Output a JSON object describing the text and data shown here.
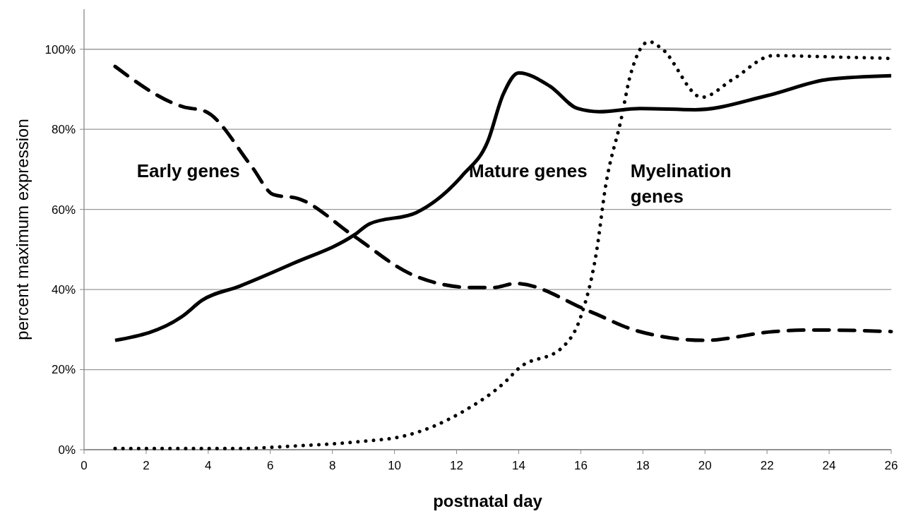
{
  "chart_data": {
    "type": "line",
    "xlabel": "postnatal day",
    "ylabel": "percent maximum expression",
    "xlim": [
      0,
      26
    ],
    "xticks": [
      0,
      2,
      4,
      6,
      8,
      10,
      12,
      14,
      16,
      18,
      20,
      22,
      24,
      26
    ],
    "ylim": [
      0,
      110
    ],
    "yticks": [
      {
        "value": 0,
        "label": "0%"
      },
      {
        "value": 20,
        "label": "20%"
      },
      {
        "value": 40,
        "label": "40%"
      },
      {
        "value": 60,
        "label": "60%"
      },
      {
        "value": 80,
        "label": "80%"
      },
      {
        "value": 100,
        "label": "100%"
      }
    ],
    "grid": "y",
    "legend": false,
    "marker": "none",
    "series": [
      {
        "name": "Early genes",
        "color": "#000000",
        "line_style": "dashed",
        "x": [
          1,
          3.2,
          3.9,
          5.4,
          6.1,
          6.9,
          8.7,
          10.6,
          12.5,
          13.2,
          13.9,
          16.3,
          17.8,
          20,
          22.2,
          23.6,
          26
        ],
        "values": [
          95.7,
          85.6,
          84.5,
          70.7,
          63.7,
          62.7,
          53.3,
          43.6,
          40.5,
          40.5,
          41.5,
          34.5,
          29.7,
          27.3,
          29.5,
          29.9,
          29.5
        ]
      },
      {
        "name": "Mature genes",
        "color": "#000000",
        "line_style": "solid",
        "x": [
          1,
          3.2,
          3.8,
          5,
          6.7,
          8.7,
          9.2,
          10.7,
          12.2,
          13,
          13.5,
          14,
          15,
          15.9,
          16.6,
          17.9,
          19.7,
          22,
          24,
          26
        ],
        "values": [
          27.3,
          33.5,
          37.3,
          40.8,
          46.4,
          53.6,
          56.4,
          59.2,
          68.6,
          76.9,
          88.7,
          94.1,
          90.8,
          85.2,
          84.4,
          85.2,
          84.9,
          88.4,
          92.5,
          93.4
        ]
      },
      {
        "name": "Myelination genes",
        "color": "#000000",
        "line_style": "dotted",
        "x": [
          1,
          3,
          5,
          6.7,
          8.7,
          10.4,
          12.2,
          13.6,
          14,
          15.4,
          16,
          16.5,
          16.8,
          17.3,
          17.6,
          18.2,
          18.6,
          19.9,
          20.9,
          22.2,
          24,
          26
        ],
        "values": [
          0.3,
          0.3,
          0.3,
          0.9,
          1.9,
          3.6,
          9.5,
          17.2,
          20.3,
          25.5,
          33.2,
          49.1,
          65.8,
          82.5,
          93.6,
          101.9,
          100.2,
          88,
          92.5,
          98.4,
          98.1,
          97.7
        ]
      }
    ]
  }
}
